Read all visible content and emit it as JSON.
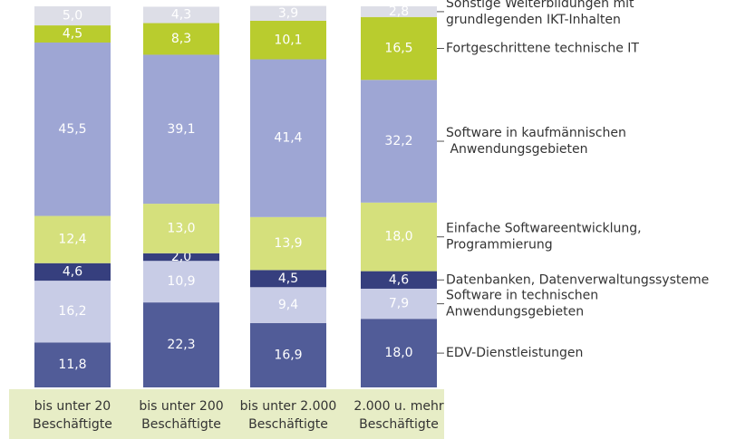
{
  "chart_data": {
    "type": "stacked_bar",
    "categories": [
      "bis unter 20\nBeschäftigte",
      "bis unter 200\nBeschäftigte",
      "bis unter 2.000\nBeschäftigte",
      "2.000 u. mehr\nBeschäftigte"
    ],
    "ylim": [
      0,
      100
    ],
    "series": [
      {
        "name": "EDV-Dienstleistungen",
        "color": "#515c98",
        "values": [
          11.8,
          22.3,
          16.9,
          18.0
        ],
        "value_labels": [
          "11,8",
          "22,3",
          "16,9",
          "18,0"
        ]
      },
      {
        "name": "Software in technischen\nAnwendungsgebieten",
        "color": "#c8cce6",
        "values": [
          16.2,
          10.9,
          9.4,
          7.9
        ],
        "value_labels": [
          "16,2",
          "10,9",
          "9,4",
          "7,9"
        ]
      },
      {
        "name": "Datenbanken, Datenverwaltungssysteme",
        "color": "#363f7e",
        "values": [
          4.6,
          2.0,
          4.5,
          4.6
        ],
        "value_labels": [
          "4,6",
          "2,0",
          "4,5",
          "4,6"
        ]
      },
      {
        "name": "Einfache Softwareentwicklung,\nProgrammierung",
        "color": "#d5e07c",
        "values": [
          12.4,
          13.0,
          13.9,
          18.0
        ],
        "value_labels": [
          "12,4",
          "13,0",
          "13,9",
          "18,0"
        ]
      },
      {
        "name": "Software in kaufmännischen\n Anwendungsgebieten",
        "color": "#9ea6d4",
        "values": [
          45.5,
          39.1,
          41.4,
          32.2
        ],
        "value_labels": [
          "45,5",
          "39,1",
          "41,4",
          "32,2"
        ]
      },
      {
        "name": "Fortgeschrittene technische IT",
        "color": "#b9cc2e",
        "values": [
          4.5,
          8.3,
          10.1,
          16.5
        ],
        "value_labels": [
          "4,5",
          "8,3",
          "10,1",
          "16,5"
        ]
      },
      {
        "name": "Sonstige Weiterbildungen mit\ngrundlegenden IKT-Inhalten",
        "color": "#dddee7",
        "values": [
          5.0,
          4.3,
          3.9,
          2.8
        ],
        "value_labels": [
          "5,0",
          "4,3",
          "3,9",
          "2,8"
        ]
      }
    ]
  }
}
